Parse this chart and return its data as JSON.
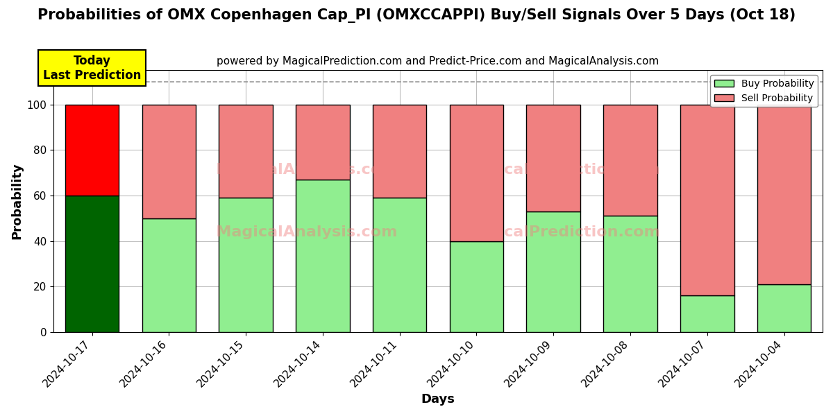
{
  "title": "Probabilities of OMX Copenhagen Cap_PI (OMXCCAPPI) Buy/Sell Signals Over 5 Days (Oct 18)",
  "subtitle": "powered by MagicalPrediction.com and Predict-Price.com and MagicalAnalysis.com",
  "xlabel": "Days",
  "ylabel": "Probability",
  "categories": [
    "2024-10-17",
    "2024-10-16",
    "2024-10-15",
    "2024-10-14",
    "2024-10-11",
    "2024-10-10",
    "2024-10-09",
    "2024-10-08",
    "2024-10-07",
    "2024-10-04"
  ],
  "buy_values": [
    60,
    50,
    59,
    67,
    59,
    40,
    53,
    51,
    16,
    21
  ],
  "sell_values": [
    40,
    50,
    41,
    33,
    41,
    60,
    47,
    49,
    84,
    79
  ],
  "buy_colors_regular": "#90EE90",
  "sell_colors_regular": "#F08080",
  "buy_color_today": "#006400",
  "sell_color_today": "#FF0000",
  "bar_edge_color": "black",
  "bar_edge_width": 1.0,
  "ylim": [
    0,
    115
  ],
  "yticks": [
    0,
    20,
    40,
    60,
    80,
    100
  ],
  "dashed_line_y": 110,
  "legend_buy_label": "Buy Probability",
  "legend_sell_label": "Sell Probability",
  "today_label_line1": "Today",
  "today_label_line2": "Last Prediction",
  "today_box_color": "yellow",
  "today_box_edgecolor": "black",
  "title_fontsize": 15,
  "subtitle_fontsize": 11,
  "axis_label_fontsize": 13,
  "tick_fontsize": 11,
  "background_color": "white",
  "grid_color": "gray",
  "grid_alpha": 0.5,
  "grid_linestyle": "-"
}
